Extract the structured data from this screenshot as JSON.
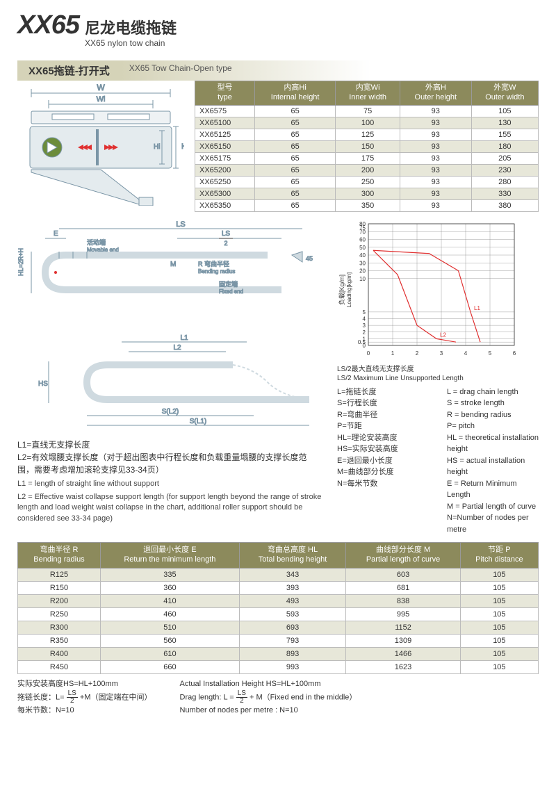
{
  "title": {
    "main": "XX65",
    "cn": "尼龙电缆拖链",
    "en": "XX65 nylon tow chain"
  },
  "section": {
    "cn": "XX65拖链-打开式",
    "en": "XX65 Tow Chain-Open type"
  },
  "table1": {
    "columns": [
      {
        "cn": "型号",
        "en": "type"
      },
      {
        "cn": "内高Hi",
        "en": "Internal height"
      },
      {
        "cn": "内宽Wi",
        "en": "Inner width"
      },
      {
        "cn": "外高H",
        "en": "Outer height"
      },
      {
        "cn": "外宽W",
        "en": "Outer width"
      }
    ],
    "rows": [
      [
        "XX6575",
        "65",
        "75",
        "93",
        "105"
      ],
      [
        "XX65100",
        "65",
        "100",
        "93",
        "130"
      ],
      [
        "XX65125",
        "65",
        "125",
        "93",
        "155"
      ],
      [
        "XX65150",
        "65",
        "150",
        "93",
        "180"
      ],
      [
        "XX65175",
        "65",
        "175",
        "93",
        "205"
      ],
      [
        "XX65200",
        "65",
        "200",
        "93",
        "230"
      ],
      [
        "XX65250",
        "65",
        "250",
        "93",
        "280"
      ],
      [
        "XX65300",
        "65",
        "300",
        "93",
        "330"
      ],
      [
        "XX65350",
        "65",
        "350",
        "93",
        "380"
      ]
    ],
    "header_bg": "#8c8a5c",
    "stripe_bg": "#e7e7d9"
  },
  "diagram_top": {
    "labels": {
      "W": "W",
      "Wi": "Wi",
      "Hi": "Hi",
      "H": "H"
    },
    "colors": {
      "stroke": "#7a95a6",
      "arrow": "#e03030",
      "circle": "#6c8c3b"
    }
  },
  "diagram_mid": {
    "labels": {
      "LS": "LS",
      "LS2": "LS",
      "movable_cn": "活动端",
      "movable_en": "Movable end",
      "R_cn": "R 弯曲半径",
      "R_en": "Bending radius",
      "fixed_cn": "固定端",
      "fixed_en": "Fixed end",
      "E": "E",
      "HL": "HL=2R+H",
      "M": "M",
      "ang": "45",
      "L1": "L1",
      "L2": "L2",
      "HS": "HS",
      "SL2": "S(L2)",
      "SL1": "S(L1)",
      "half": "2"
    },
    "colors": {
      "stroke": "#7a95a6",
      "text": "#333"
    }
  },
  "chart": {
    "ylabel_cn": "负载[Kg/m]",
    "ylabel_en": "Loading[kg/m]",
    "xlabel_cn": "LS/2最大直线无支撑长度",
    "xlabel_en": "LS/2 Maximum Line Unsupported Length",
    "yticks": [
      "80",
      "75",
      "70",
      "60",
      "50",
      "40",
      "30",
      "20",
      "10",
      "5",
      "4",
      "3",
      "2",
      "1",
      "0.5",
      "0"
    ],
    "ytick_vals": [
      80,
      75,
      70,
      60,
      50,
      40,
      30,
      20,
      10,
      5,
      4,
      3,
      2,
      1,
      0.5,
      0
    ],
    "xticks": [
      "0",
      "1",
      "2",
      "3",
      "4",
      "5",
      "6"
    ],
    "xtick_vals": [
      0,
      1,
      2,
      3,
      4,
      5,
      6
    ],
    "series": [
      {
        "label": "L1",
        "color": "#e03030",
        "points": [
          [
            0.2,
            46
          ],
          [
            2.5,
            42
          ],
          [
            3.7,
            20
          ],
          [
            4.2,
            5
          ],
          [
            4.6,
            0.5
          ]
        ]
      },
      {
        "label": "L2",
        "color": "#e03030",
        "points": [
          [
            0.2,
            46
          ],
          [
            1.2,
            15
          ],
          [
            2.0,
            3
          ],
          [
            2.8,
            1
          ],
          [
            3.6,
            0.5
          ]
        ]
      }
    ],
    "grid_color": "#888",
    "bg": "#ffffff",
    "xlim": [
      0,
      6
    ]
  },
  "notes": {
    "l1_cn": "L1=直线无支撑长度",
    "l2_cn": "L2=有效塌腰支撑长度（对于超出图表中行程长度和负载重量塌腰的支撑长度范围，需要考虑增加滚轮支撑见33-34页）",
    "l1_en": "L1 = length of straight line without support",
    "l2_en": "L2 = Effective waist collapse support length (for support length beyond the range of stroke length and load weight waist collapse in the chart, additional roller support should be considered see 33-34 page)"
  },
  "defs": {
    "rows": [
      {
        "cn": "L=拖链长度",
        "en": "L = drag chain length"
      },
      {
        "cn": "S=行程长度",
        "en": "S = stroke length"
      },
      {
        "cn": "R=弯曲半径",
        "en": "R = bending radius"
      },
      {
        "cn": "P=节距",
        "en": "P= pitch"
      },
      {
        "cn": "HL=理论安装高度",
        "en": "HL = theoretical installation height"
      },
      {
        "cn": "HS=实际安装高度",
        "en": "HS = actual installation height"
      },
      {
        "cn": "E=退回最小长度",
        "en": "E = Return Minimum Length"
      },
      {
        "cn": "M=曲线部分长度",
        "en": "M = Partial length of curve"
      },
      {
        "cn": "N=每米节数",
        "en": "N=Number of nodes per metre"
      }
    ]
  },
  "table2": {
    "columns": [
      {
        "cn": "弯曲半径 R",
        "en": "Bending radius"
      },
      {
        "cn": "退回最小长度 E",
        "en": "Return the minimum length"
      },
      {
        "cn": "弯曲总高度 HL",
        "en": "Total bending height"
      },
      {
        "cn": "曲线部分长度 M",
        "en": "Partial length of curve"
      },
      {
        "cn": "节距 P",
        "en": "Pitch distance"
      }
    ],
    "rows": [
      [
        "R125",
        "335",
        "343",
        "603",
        "105"
      ],
      [
        "R150",
        "360",
        "393",
        "681",
        "105"
      ],
      [
        "R200",
        "410",
        "493",
        "838",
        "105"
      ],
      [
        "R250",
        "460",
        "593",
        "995",
        "105"
      ],
      [
        "R300",
        "510",
        "693",
        "1152",
        "105"
      ],
      [
        "R350",
        "560",
        "793",
        "1309",
        "105"
      ],
      [
        "R400",
        "610",
        "893",
        "1466",
        "105"
      ],
      [
        "R450",
        "660",
        "993",
        "1623",
        "105"
      ]
    ]
  },
  "footer": {
    "hs_cn": "实际安装高度HS=HL+100mm",
    "hs_en": "Actual Installation Height HS=HL+100mm",
    "drag_cn_pre": "拖链长度：L= ",
    "drag_cn_post": " +M（固定端在中间）",
    "drag_en_pre": "Drag length: L = ",
    "drag_en_post": " + M（Fixed end in the middle）",
    "frac_n": "LS",
    "frac_d": "2",
    "n_cn": "每米节数：N=10",
    "n_en": "Number of nodes per metre : N=10"
  }
}
